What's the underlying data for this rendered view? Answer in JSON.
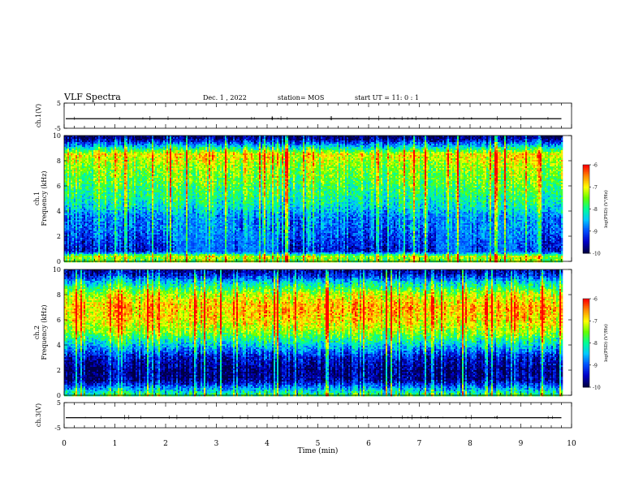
{
  "header": {
    "title": "VLF Spectra",
    "date": "Dec. 1  , 2022",
    "station": "station= MOS",
    "start": "start  UT  =   11: 0  : 1"
  },
  "colors": {
    "colormap": [
      "#000046",
      "#0000c8",
      "#0050ff",
      "#00c8ff",
      "#00ff96",
      "#64ff00",
      "#ffff00",
      "#ff8c00",
      "#ff0000"
    ],
    "trace": "#000000"
  },
  "chart_data": [
    {
      "type": "line",
      "ylabel": "ch.1(V)",
      "ylim": [
        -5,
        5
      ],
      "yticks": [
        "5",
        "-5"
      ],
      "xlim": [
        0,
        10
      ],
      "series": [
        {
          "values": [
            -1.2,
            -1.2
          ]
        }
      ]
    },
    {
      "type": "heatmap",
      "ylabel": "ch.1\nFrequency (kHz)",
      "ylim": [
        0,
        10
      ],
      "yticks": [
        "0",
        "2",
        "4",
        "6",
        "8",
        "10"
      ],
      "xlim": [
        0,
        10
      ],
      "data_until_min": 9.8,
      "colorbar": {
        "label": "log(PSD) (V²/Hz)",
        "range": [
          -10,
          -6
        ],
        "ticks": [
          "-6",
          "-7",
          "-8",
          "-9",
          "-10"
        ]
      },
      "band_profile": [
        {
          "freq_khz": 0.0,
          "level": -7.6
        },
        {
          "freq_khz": 0.4,
          "level": -7.3
        },
        {
          "freq_khz": 0.8,
          "level": -9.4
        },
        {
          "freq_khz": 1.5,
          "level": -9.2
        },
        {
          "freq_khz": 2.5,
          "level": -8.9
        },
        {
          "freq_khz": 3.5,
          "level": -8.8
        },
        {
          "freq_khz": 4.5,
          "level": -8.2
        },
        {
          "freq_khz": 5.5,
          "level": -7.9
        },
        {
          "freq_khz": 6.5,
          "level": -7.6
        },
        {
          "freq_khz": 7.5,
          "level": -7.4
        },
        {
          "freq_khz": 8.5,
          "level": -7.0
        },
        {
          "freq_khz": 9.2,
          "level": -8.6
        },
        {
          "freq_khz": 9.7,
          "level": -9.7
        },
        {
          "freq_khz": 10.0,
          "level": -9.9
        }
      ],
      "hiss_events": [
        {
          "t_min": 2.2,
          "t_max": 3.3,
          "f_min": 0.2,
          "f_max": 3.6
        },
        {
          "t_min": 3.4,
          "t_max": 4.2,
          "f_min": 0.2,
          "f_max": 2.4
        },
        {
          "t_min": 7.3,
          "t_max": 8.0,
          "f_min": 0.3,
          "f_max": 3.8
        },
        {
          "t_min": 8.3,
          "t_max": 8.9,
          "f_min": 0.3,
          "f_max": 3.0
        }
      ]
    },
    {
      "type": "heatmap",
      "ylabel": "ch.2\nFrequency (kHz)",
      "ylim": [
        0,
        10
      ],
      "yticks": [
        "0",
        "2",
        "4",
        "6",
        "8",
        "10"
      ],
      "xlim": [
        0,
        10
      ],
      "data_until_min": 9.8,
      "colorbar": {
        "label": "log(PSD) (V²/Hz)",
        "range": [
          -10,
          -6
        ],
        "ticks": [
          "-6",
          "-7",
          "-8",
          "-9",
          "-10"
        ]
      },
      "band_profile": [
        {
          "freq_khz": 0.0,
          "level": -7.8
        },
        {
          "freq_khz": 0.5,
          "level": -8.6
        },
        {
          "freq_khz": 1.2,
          "level": -9.7
        },
        {
          "freq_khz": 2.0,
          "level": -9.8
        },
        {
          "freq_khz": 3.0,
          "level": -9.4
        },
        {
          "freq_khz": 4.0,
          "level": -8.4
        },
        {
          "freq_khz": 5.0,
          "level": -7.4
        },
        {
          "freq_khz": 6.0,
          "level": -6.9
        },
        {
          "freq_khz": 7.0,
          "level": -6.7
        },
        {
          "freq_khz": 8.0,
          "level": -7.2
        },
        {
          "freq_khz": 9.0,
          "level": -8.4
        },
        {
          "freq_khz": 9.6,
          "level": -9.4
        },
        {
          "freq_khz": 10.0,
          "level": -9.7
        }
      ],
      "hiss_events": []
    },
    {
      "type": "line",
      "ylabel": "ch.3(V)",
      "ylim": [
        -5,
        5
      ],
      "yticks": [
        "5",
        "-5"
      ],
      "xlim": [
        0,
        10
      ],
      "xlabel": "Time  (min)",
      "xticks": [
        "0",
        "1",
        "2",
        "3",
        "4",
        "5",
        "6",
        "7",
        "8",
        "9",
        "10"
      ],
      "series": [
        {
          "values": [
            -1.0,
            -1.0
          ]
        }
      ]
    }
  ]
}
